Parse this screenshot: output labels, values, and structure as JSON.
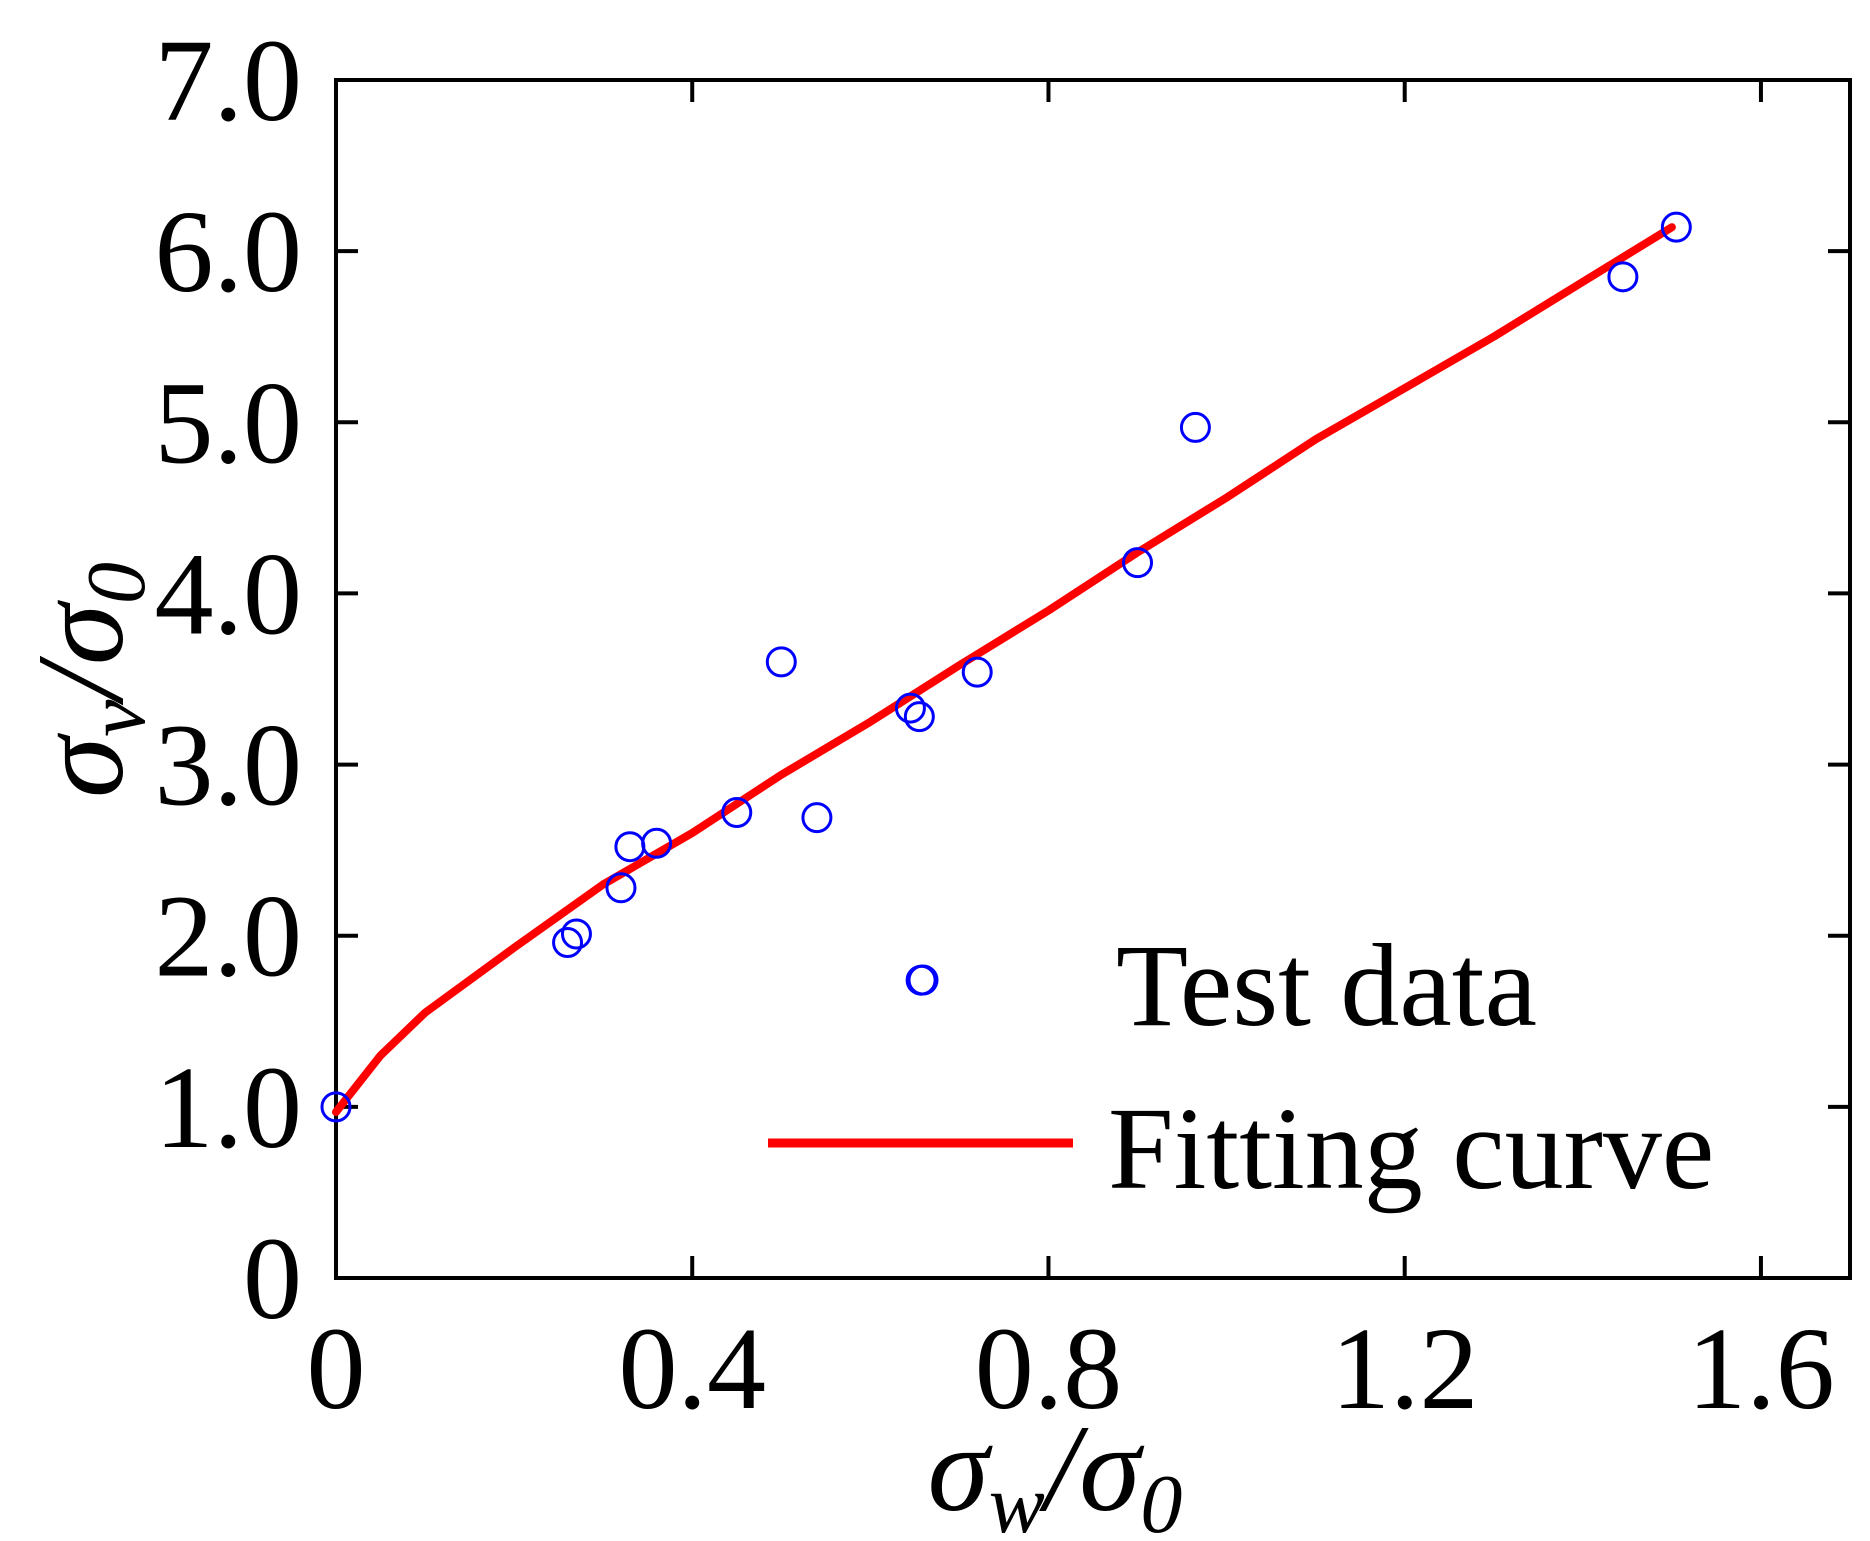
{
  "chart_data": {
    "type": "scatter",
    "title": "",
    "xlabel": "σw/σ0",
    "ylabel": "σv/σ0",
    "xlabel_parts": {
      "main": "σ",
      "sub": "w",
      "sep": "/",
      "main2": "σ",
      "sub2": "0"
    },
    "ylabel_parts": {
      "main": "σ",
      "sub": "v",
      "sep": "/",
      "main2": "σ",
      "sub2": "0"
    },
    "xlim": [
      0,
      1.7
    ],
    "ylim": [
      0,
      7.0
    ],
    "xticks": [
      0,
      0.4,
      0.8,
      1.2,
      1.6
    ],
    "xtick_labels": [
      "0",
      "0.4",
      "0.8",
      "1.2",
      "1.6"
    ],
    "yticks": [
      0,
      1.0,
      2.0,
      3.0,
      4.0,
      5.0,
      6.0,
      7.0
    ],
    "ytick_labels": [
      "0",
      "1.0",
      "2.0",
      "3.0",
      "4.0",
      "5.0",
      "6.0",
      "7.0"
    ],
    "grid": false,
    "legend_position": "bottom-right",
    "series": [
      {
        "name": "Test data",
        "kind": "scatter",
        "marker": "open-circle",
        "color": "#0000ff",
        "points": [
          [
            0.0,
            1.0
          ],
          [
            0.26,
            1.96
          ],
          [
            0.27,
            2.01
          ],
          [
            0.32,
            2.28
          ],
          [
            0.33,
            2.52
          ],
          [
            0.36,
            2.54
          ],
          [
            0.45,
            2.72
          ],
          [
            0.5,
            3.6
          ],
          [
            0.54,
            2.69
          ],
          [
            0.645,
            3.33
          ],
          [
            0.655,
            3.28
          ],
          [
            0.657,
            1.74
          ],
          [
            0.72,
            3.54
          ],
          [
            0.9,
            4.18
          ],
          [
            0.965,
            4.97
          ],
          [
            1.445,
            5.85
          ],
          [
            1.505,
            6.14
          ]
        ]
      },
      {
        "name": "Fitting curve",
        "kind": "line",
        "color": "#ff0000",
        "points": [
          [
            0.0,
            0.97
          ],
          [
            0.05,
            1.3
          ],
          [
            0.1,
            1.55
          ],
          [
            0.2,
            1.93
          ],
          [
            0.3,
            2.3
          ],
          [
            0.4,
            2.6
          ],
          [
            0.5,
            2.94
          ],
          [
            0.6,
            3.25
          ],
          [
            0.7,
            3.58
          ],
          [
            0.8,
            3.9
          ],
          [
            0.9,
            4.24
          ],
          [
            1.0,
            4.56
          ],
          [
            1.1,
            4.9
          ],
          [
            1.2,
            5.2
          ],
          [
            1.3,
            5.5
          ],
          [
            1.4,
            5.82
          ],
          [
            1.5,
            6.14
          ]
        ]
      }
    ]
  }
}
